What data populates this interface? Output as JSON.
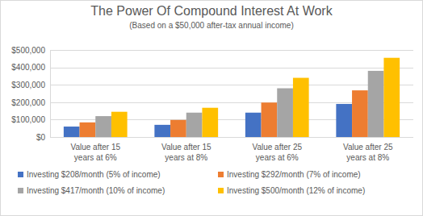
{
  "chart_data": {
    "type": "bar",
    "title": "The Power Of Compound Interest At Work",
    "subtitle": "(Based on a $50,000 after-tax annual income)",
    "categories": [
      "Value after 15 years at 6%",
      "Value after 15 years at 8%",
      "Value after 25 years at 6%",
      "Value after 25 years at 8%"
    ],
    "series": [
      {
        "name": "Investing $208/month (5% of income)",
        "color": "#4472c4",
        "values": [
          60000,
          70000,
          140000,
          190000
        ]
      },
      {
        "name": "Investing $292/month (7% of income)",
        "color": "#ed7d31",
        "values": [
          84000,
          98000,
          198000,
          268000
        ]
      },
      {
        "name": "Investing $417/month (10% of income)",
        "color": "#a5a5a5",
        "values": [
          120000,
          140000,
          280000,
          380000
        ]
      },
      {
        "name": "Investing $500/month (12% of income)",
        "color": "#ffc000",
        "values": [
          145000,
          168000,
          340000,
          455000
        ]
      }
    ],
    "ylim": [
      0,
      500000
    ],
    "yticks": [
      {
        "value": 0,
        "label": "$0"
      },
      {
        "value": 100000,
        "label": "$100,000"
      },
      {
        "value": 200000,
        "label": "$200,000"
      },
      {
        "value": 300000,
        "label": "$300,000"
      },
      {
        "value": 400000,
        "label": "$400,000"
      },
      {
        "value": 500000,
        "label": "$500,000"
      }
    ],
    "grid": true,
    "legend": "bottom"
  }
}
